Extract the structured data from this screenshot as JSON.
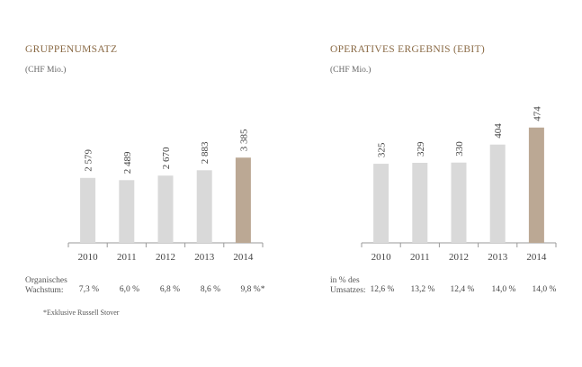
{
  "colors": {
    "bar_default": "#d9d9d9",
    "bar_highlight": "#bba894",
    "title": "#8a6a45",
    "axis": "#9a9a9a"
  },
  "left": {
    "title": "GRUPPENUMSATZ",
    "unit": "(CHF Mio.)",
    "row_label_1": "Organisches",
    "row_label_2": "Wachstum:",
    "row_values": [
      "7,3 %",
      "6,0 %",
      "6,8 %",
      "8,6 %",
      "9,8 %*"
    ],
    "footnote": "*Exklusive Russell Stover"
  },
  "right": {
    "title": "OPERATIVES ERGEBNIS (EBIT)",
    "unit": "(CHF Mio.)",
    "row_label_1": "in % des",
    "row_label_2": "Umsatzes:",
    "row_values": [
      "12,6 %",
      "13,2 %",
      "12,4 %",
      "14,0 %",
      "14,0 %"
    ]
  },
  "chart_data": [
    {
      "type": "bar",
      "title": "GRUPPENUMSATZ",
      "ylabel": "(CHF Mio.)",
      "categories": [
        "2010",
        "2011",
        "2012",
        "2013",
        "2014"
      ],
      "values": [
        2579,
        2489,
        2670,
        2883,
        3385
      ],
      "value_labels": [
        "2 579",
        "2 489",
        "2 670",
        "2 883",
        "3 385"
      ],
      "highlight_index": 4,
      "ylim": [
        0,
        4000
      ],
      "grid": false
    },
    {
      "type": "bar",
      "title": "OPERATIVES ERGEBNIS (EBIT)",
      "ylabel": "(CHF Mio.)",
      "categories": [
        "2010",
        "2011",
        "2012",
        "2013",
        "2014"
      ],
      "values": [
        325,
        329,
        330,
        404,
        474
      ],
      "value_labels": [
        "325",
        "329",
        "330",
        "404",
        "474"
      ],
      "highlight_index": 4,
      "ylim": [
        0,
        500
      ],
      "grid": false
    }
  ]
}
